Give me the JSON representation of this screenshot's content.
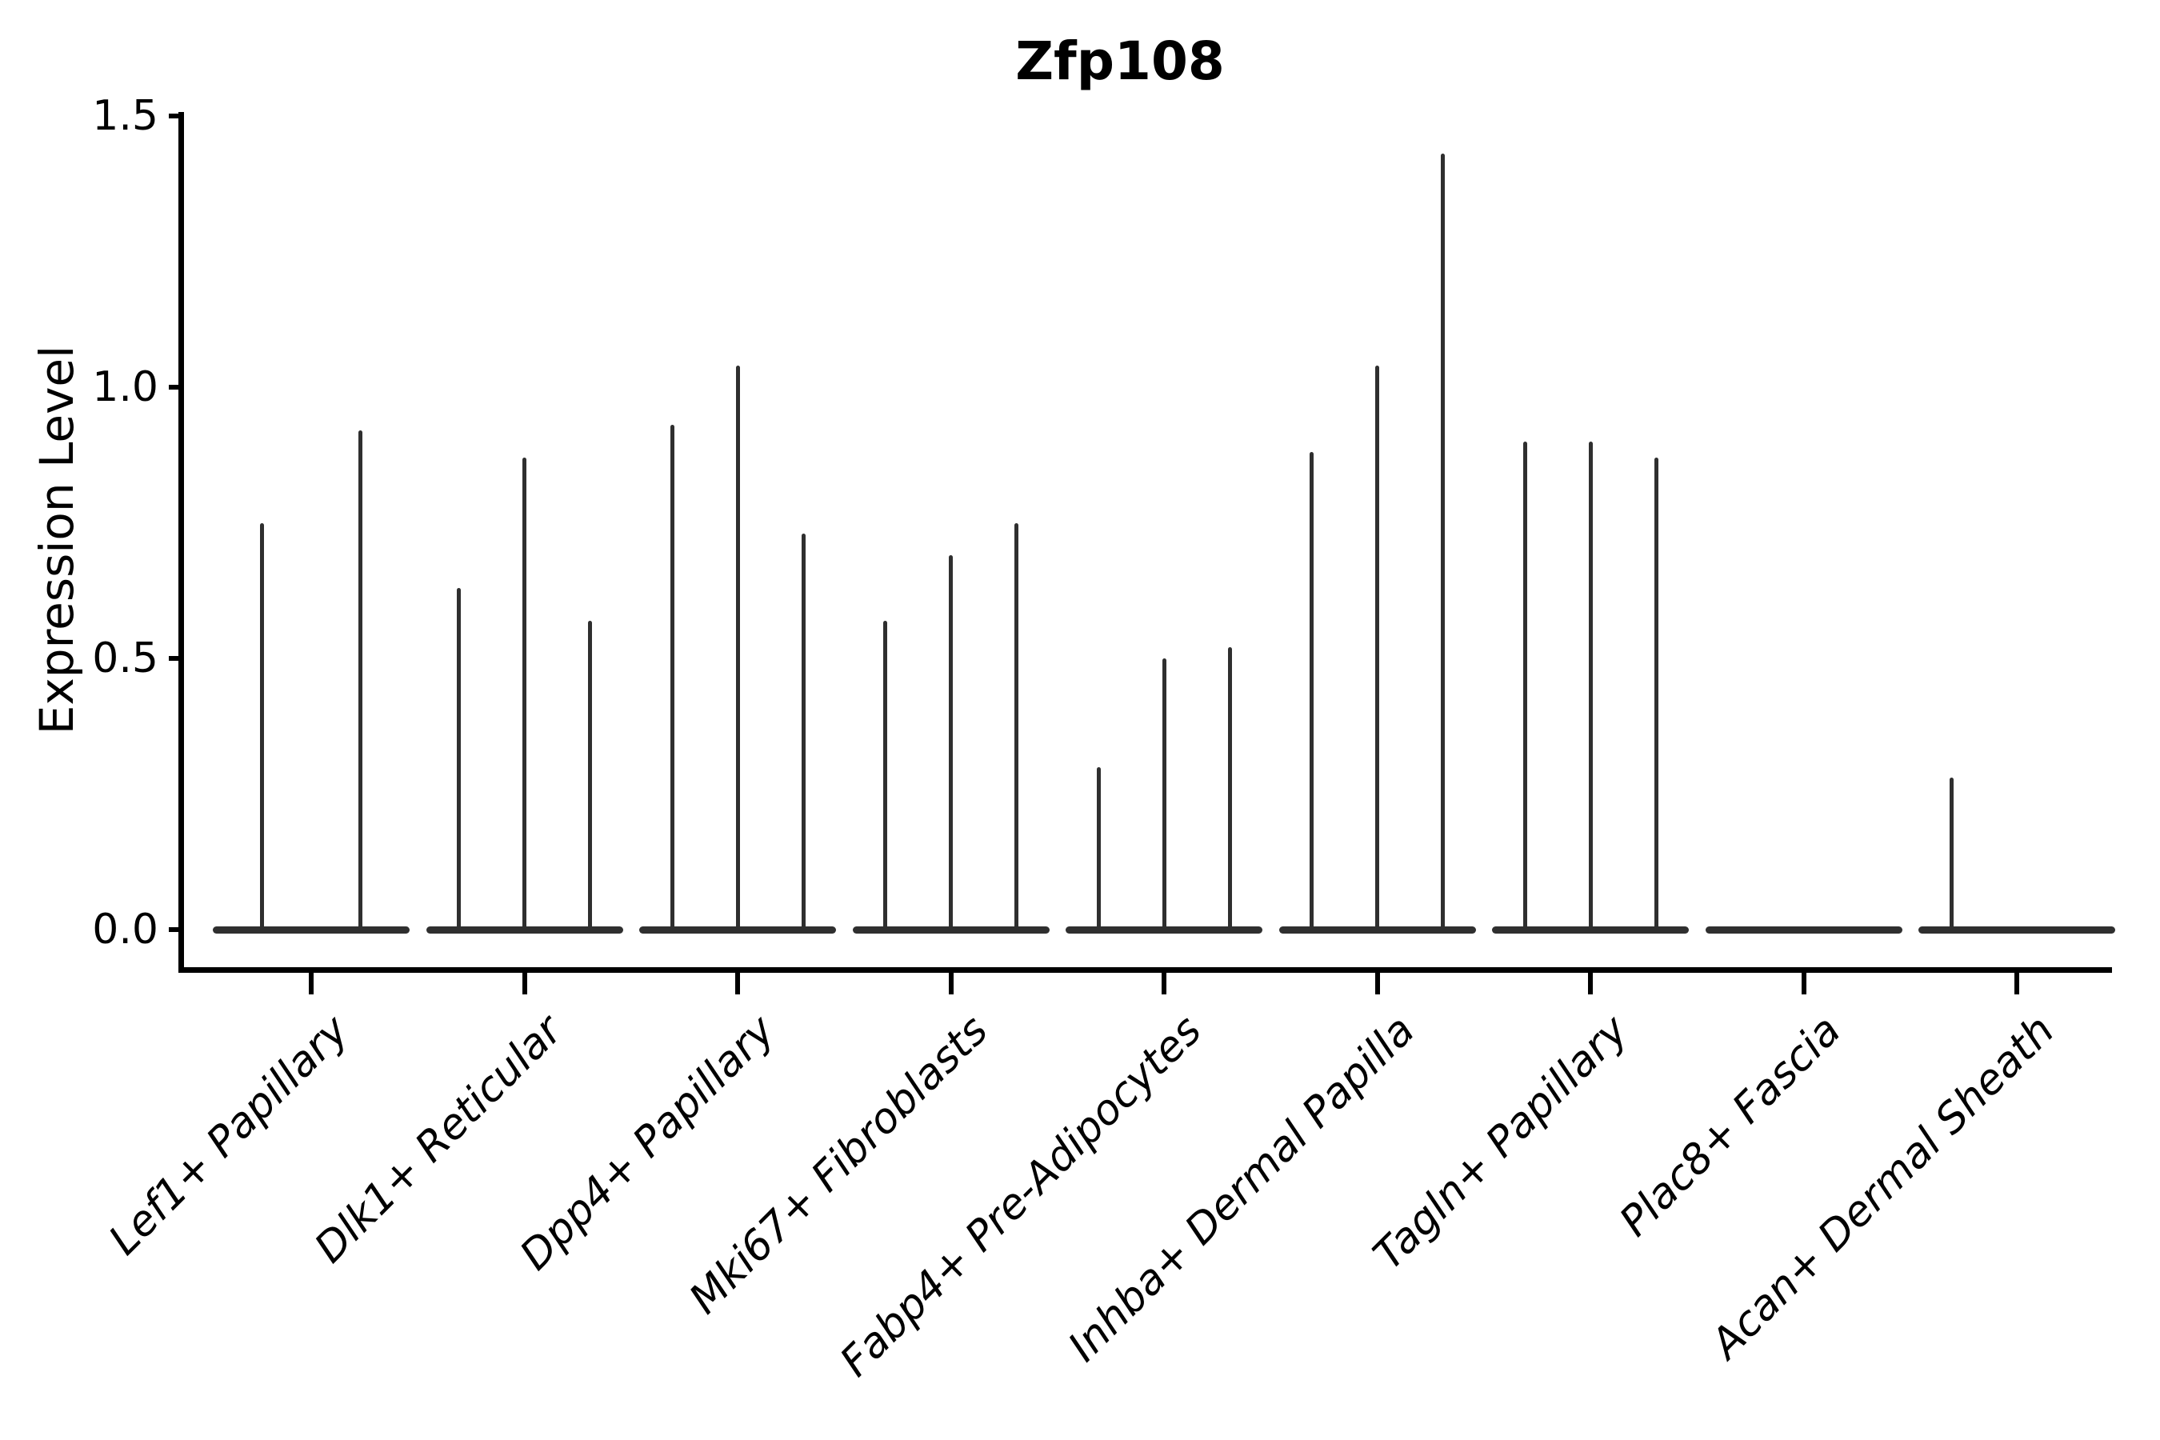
{
  "title": "Zfp108",
  "ylabel": "Expression Level",
  "colors": {
    "ink": "#000000",
    "violin": "#2f2f2f",
    "background": "#ffffff"
  },
  "chart_data": {
    "type": "violin",
    "title": "Zfp108",
    "xlabel": "",
    "ylabel": "Expression Level",
    "ylim": [
      0,
      1.5
    ],
    "yticks": [
      0.0,
      0.5,
      1.0,
      1.5
    ],
    "ytick_labels": [
      "0.0",
      "0.5",
      "1.0",
      "1.5"
    ],
    "grid": false,
    "legend": "none",
    "categories": [
      "Lef1+ Papillary",
      "Dlk1+ Reticular",
      "Dpp4+ Papillary",
      "Mki67+ Fibroblasts",
      "Fabp4+ Pre-Adipocytes",
      "Inhba+ Dermal Papilla",
      "Tagln+ Papillary",
      "Plac8+ Fascia",
      "Acan+ Dermal Sheath"
    ],
    "description": "Thin violin plots of gene expression; most cells at 0 so each violin collapses to a flat disc at 0 with a narrow spike up to its maximum expression value.",
    "groups": [
      {
        "category": "Lef1+ Papillary",
        "violin_max_values": [
          0.75,
          0.92
        ]
      },
      {
        "category": "Dlk1+ Reticular",
        "violin_max_values": [
          0.63,
          0.87,
          0.57
        ]
      },
      {
        "category": "Dpp4+ Papillary",
        "violin_max_values": [
          0.93,
          1.04,
          0.73
        ]
      },
      {
        "category": "Mki67+ Fibroblasts",
        "violin_max_values": [
          0.57,
          0.69,
          0.75
        ]
      },
      {
        "category": "Fabp4+ Pre-Adipocytes",
        "violin_max_values": [
          0.3,
          0.5,
          0.52
        ]
      },
      {
        "category": "Inhba+ Dermal Papilla",
        "violin_max_values": [
          0.88,
          1.04,
          1.43
        ]
      },
      {
        "category": "Tagln+ Papillary",
        "violin_max_values": [
          0.9,
          0.9,
          0.87
        ]
      },
      {
        "category": "Plac8+ Fascia",
        "violin_max_values": [
          0.0,
          0.0,
          0.0
        ]
      },
      {
        "category": "Acan+ Dermal Sheath",
        "violin_max_values": [
          0.28,
          0.0,
          0.0
        ]
      }
    ]
  }
}
